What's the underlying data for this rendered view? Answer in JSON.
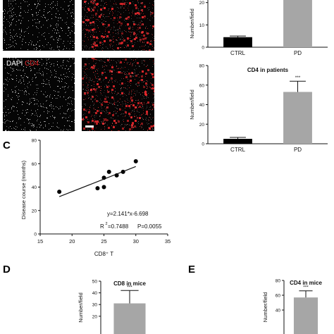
{
  "panel_labels": {
    "c": "C",
    "d": "D",
    "e": "E"
  },
  "micrograph": {
    "stain_dapi": "DAPI",
    "stain_cd4": "CD4",
    "dapi_color": "#ffffff",
    "cd4_color": "#e0262a"
  },
  "significance": "***",
  "chart_data": [
    {
      "id": "cd8-patients",
      "type": "bar",
      "title": "",
      "ylabel": "Number/field",
      "categories": [
        "CTRL",
        "PD"
      ],
      "values": [
        4.5,
        30
      ],
      "errors": [
        0.5,
        0
      ],
      "ylim": [
        0,
        30
      ],
      "yticks": [
        "0",
        "10",
        "20"
      ],
      "bar_colors": [
        "#000000",
        "#a6a6a6"
      ],
      "annotation": ""
    },
    {
      "id": "cd4-patients",
      "type": "bar",
      "title": "CD4 in patients",
      "ylabel": "Number/field",
      "categories": [
        "CTRL",
        "PD"
      ],
      "values": [
        5,
        53
      ],
      "errors": [
        1.5,
        11
      ],
      "ylim": [
        0,
        80
      ],
      "yticks": [
        "0",
        "20",
        "40",
        "60",
        "80"
      ],
      "bar_colors": [
        "#000000",
        "#a6a6a6"
      ],
      "annotation": "***"
    },
    {
      "id": "correlation",
      "type": "scatter",
      "xlabel": "CD8⁺ T",
      "ylabel": "Disease course (months)",
      "xlim": [
        15,
        35
      ],
      "ylim": [
        0,
        80
      ],
      "xticks": [
        "15",
        "20",
        "25",
        "30",
        "35"
      ],
      "yticks": [
        "0",
        "20",
        "40",
        "60",
        "80"
      ],
      "points": [
        [
          18,
          36
        ],
        [
          24,
          39
        ],
        [
          25,
          40
        ],
        [
          25,
          48
        ],
        [
          25.8,
          53
        ],
        [
          27,
          50
        ],
        [
          28,
          53
        ],
        [
          30,
          62
        ]
      ],
      "fit": {
        "slope": 2.141,
        "intercept": -6.698,
        "x_range": [
          18,
          30
        ]
      },
      "equation": "y=2.141*x-6.698",
      "r2_label": "R",
      "r2_value": "=0.7488",
      "p_label": "P=0.0055"
    },
    {
      "id": "cd8-mice",
      "type": "bar",
      "title": "CD8 in mice",
      "ylabel": "Number/field",
      "categories": [
        "",
        ""
      ],
      "values": [
        0,
        31
      ],
      "errors": [
        0,
        11
      ],
      "ylim": [
        0,
        50
      ],
      "yticks": [
        "20",
        "30",
        "40",
        "50"
      ],
      "bar_colors": [
        "#000000",
        "#a6a6a6"
      ],
      "annotation": "***"
    },
    {
      "id": "cd4-mice",
      "type": "bar",
      "title": "CD4 in mice",
      "ylabel": "Number/field",
      "categories": [
        "",
        ""
      ],
      "values": [
        0,
        57
      ],
      "errors": [
        0,
        9
      ],
      "ylim": [
        0,
        80
      ],
      "yticks": [
        "40",
        "60",
        "80"
      ],
      "bar_colors": [
        "#000000",
        "#a6a6a6"
      ],
      "annotation": "***"
    }
  ]
}
